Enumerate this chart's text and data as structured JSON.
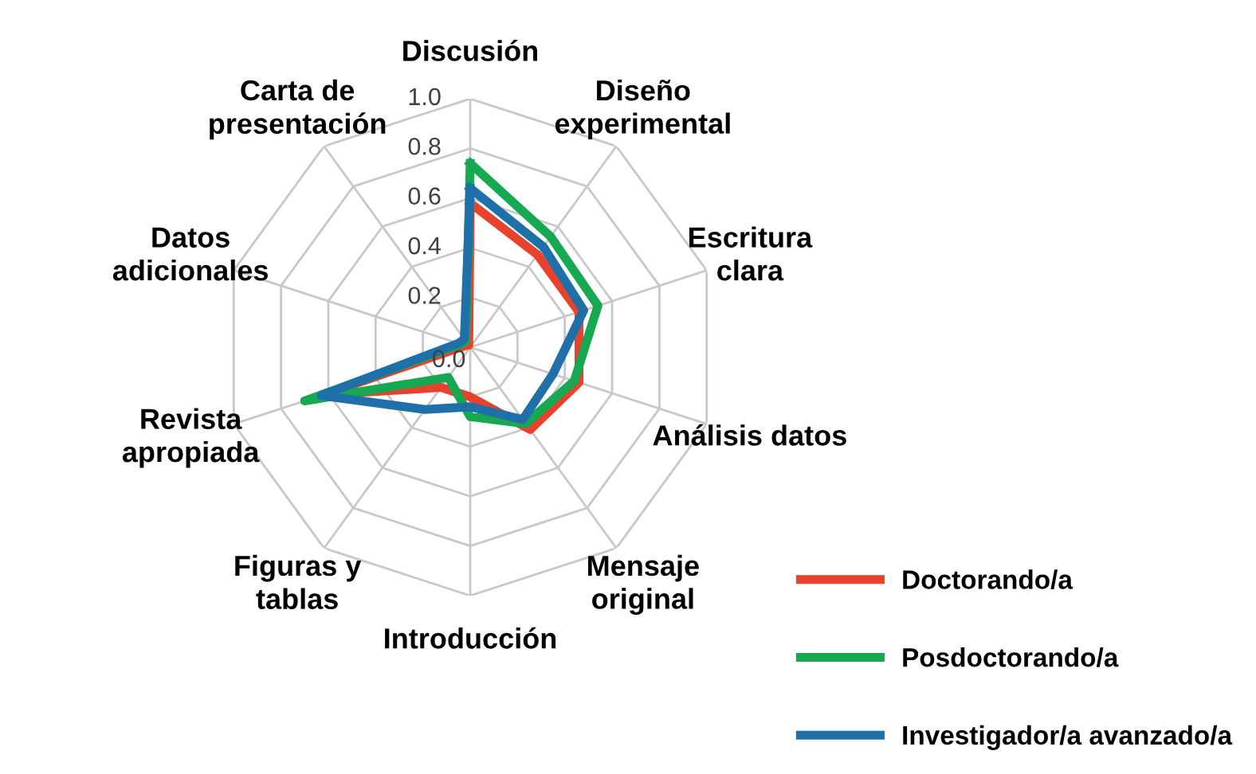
{
  "chart_data": {
    "type": "radar",
    "categories": [
      "Discusión",
      "Diseño\nexperimental",
      "Escritura\nclara",
      "Análisis datos",
      "Mensaje\noriginal",
      "Introducción",
      "Figuras y\ntablas",
      "Revista\napropiada",
      "Datos\nadicionales",
      "Carta de\npresentación"
    ],
    "ylim": [
      0,
      1.0
    ],
    "yticks": [
      {
        "value": 0,
        "label": "0.0"
      },
      0.2,
      0.4,
      0.6,
      0.8,
      {
        "value": 1.0,
        "label": "1.0"
      }
    ],
    "grid": true,
    "legend": "bottom right",
    "series": [
      {
        "name": "Doctorando/a",
        "color": "#e8412c",
        "values": [
          0.58,
          0.46,
          0.46,
          0.46,
          0.41,
          0.2,
          0.2,
          0.62,
          0.02,
          0.01
        ]
      },
      {
        "name": "Posdoctorando/a",
        "color": "#16a951",
        "values": [
          0.74,
          0.55,
          0.54,
          0.44,
          0.38,
          0.28,
          0.15,
          0.7,
          0.04,
          0.03
        ]
      },
      {
        "name": "Investigador/a avanzado/a",
        "color": "#1f6fa8",
        "values": [
          0.64,
          0.5,
          0.48,
          0.35,
          0.36,
          0.24,
          0.31,
          0.63,
          0.05,
          0.04
        ]
      }
    ]
  }
}
